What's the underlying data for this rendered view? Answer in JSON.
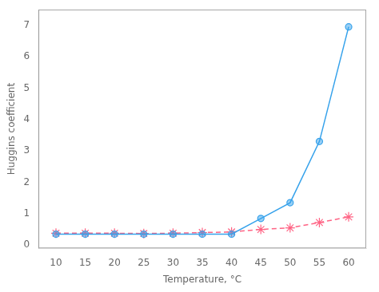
{
  "chart_data": {
    "type": "line",
    "x_label": "Temperature, °C",
    "y_label": "Huggins coefficient",
    "x": [
      10,
      15,
      20,
      25,
      30,
      35,
      40,
      45,
      50,
      55,
      60
    ],
    "series": [
      {
        "values": [
          0.35,
          0.35,
          0.35,
          0.35,
          0.35,
          0.35,
          0.35,
          0.85,
          1.35,
          3.3,
          6.95
        ],
        "marker": "circle",
        "line_style": "solid"
      },
      {
        "values": [
          0.38,
          0.38,
          0.38,
          0.37,
          0.38,
          0.4,
          0.42,
          0.5,
          0.55,
          0.72,
          0.9
        ],
        "marker": "star",
        "line_style": "dashed"
      }
    ],
    "xlim": [
      7,
      63
    ],
    "ylim": [
      -0.1,
      7.5
    ],
    "xticks": [
      10,
      15,
      20,
      25,
      30,
      35,
      40,
      45,
      50,
      55,
      60
    ],
    "yticks": [
      0,
      1,
      2,
      3,
      4,
      5,
      6,
      7
    ],
    "grid": false
  }
}
